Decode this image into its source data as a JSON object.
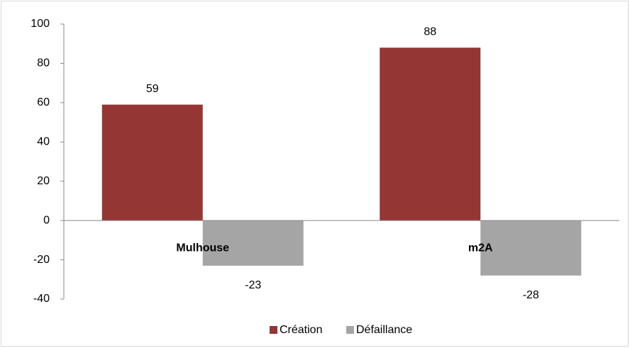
{
  "chart_data": {
    "type": "bar",
    "categories": [
      "Mulhouse",
      "m2A"
    ],
    "series": [
      {
        "name": "Création",
        "color": "#943634",
        "values": [
          59,
          88
        ]
      },
      {
        "name": "Défaillance",
        "color": "#a5a5a5",
        "values": [
          -23,
          -28
        ]
      }
    ],
    "ylim": [
      -40,
      100
    ],
    "yticks": [
      -40,
      -20,
      0,
      20,
      40,
      60,
      80,
      100
    ],
    "grid": false,
    "legend": "bottom"
  }
}
